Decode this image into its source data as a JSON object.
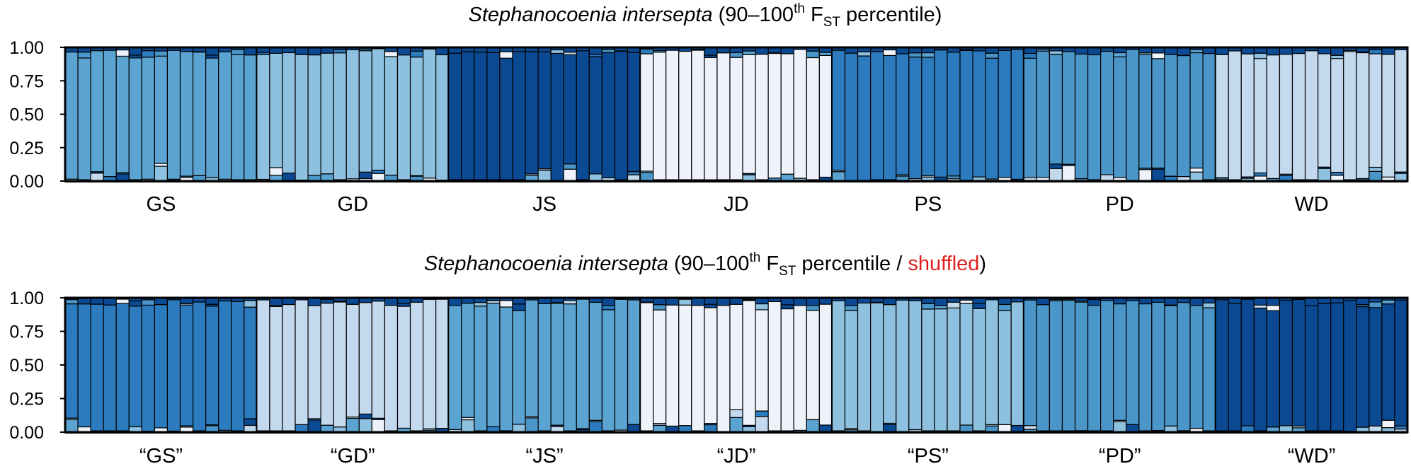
{
  "chart_data": [
    {
      "type": "stacked-bar",
      "title": {
        "species": "Stephanocoenia intersepta",
        "open": " (90–100",
        "sup": "th",
        "fst_f": " F",
        "fst_sub": "ST",
        "rest": " percentile)",
        "shuffled": "",
        "close": ""
      },
      "y_ticks": [
        "1.00",
        "0.75",
        "0.50",
        "0.25",
        "0.00"
      ],
      "ylim": [
        0,
        1
      ],
      "groups": [
        "GS",
        "GD",
        "JS",
        "JD",
        "PS",
        "PD",
        "WD"
      ],
      "bars_per_group": 15,
      "group_dominant_colors": [
        "#5ba3d0",
        "#8ec1df",
        "#0b4a92",
        "#eef3fb",
        "#2b7bbe",
        "#4a96c9",
        "#c3d9ee"
      ]
    },
    {
      "type": "stacked-bar",
      "title": {
        "species": "Stephanocoenia intersepta",
        "open": " (90–100",
        "sup": "th",
        "fst_f": " F",
        "fst_sub": "ST",
        "rest": " percentile / ",
        "shuffled": "shuffled",
        "close": ")"
      },
      "y_ticks": [
        "1.00",
        "0.75",
        "0.50",
        "0.25",
        "0.00"
      ],
      "ylim": [
        0,
        1
      ],
      "groups": [
        "“GS”",
        "“GD”",
        "“JS”",
        "“JD”",
        "“PS”",
        "“PD”",
        "“WD”"
      ],
      "bars_per_group": 15,
      "group_dominant_colors": [
        "#2b7bbe",
        "#c3d9ee",
        "#5ba3d0",
        "#eef3fb",
        "#8ec1df",
        "#4a96c9",
        "#0b4a92"
      ]
    }
  ],
  "colors": {
    "shuffled": "#e02020",
    "palette": [
      "#0b4a92",
      "#2b7bbe",
      "#4a96c9",
      "#5ba3d0",
      "#8ec1df",
      "#c3d9ee",
      "#eef3fb"
    ]
  }
}
